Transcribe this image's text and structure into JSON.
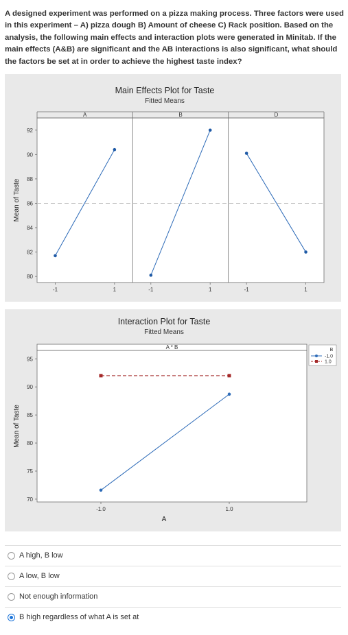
{
  "question": "A designed experiment was performed on a pizza making process. Three factors were used in this experiment – A) pizza dough B) Amount of cheese C) Rack position.  Based on the analysis, the following main effects and interaction plots were generated in Minitab. If the main effects (A&B) are significant and the AB interactions is also significant, what should the factors be set at in order to achieve the highest taste index?",
  "chart_data": [
    {
      "type": "line",
      "title": "Main Effects Plot for Taste",
      "subtitle": "Fitted Means",
      "ylabel": "Mean of Taste",
      "ylim": [
        79.5,
        93
      ],
      "yticks": [
        80,
        82,
        84,
        86,
        88,
        90,
        92
      ],
      "mean_line": 86,
      "panels": [
        {
          "factor": "A",
          "x": [
            "-1",
            "1"
          ],
          "values": [
            81.7,
            90.4
          ]
        },
        {
          "factor": "B",
          "x": [
            "-1",
            "1"
          ],
          "values": [
            80.1,
            92.0
          ]
        },
        {
          "factor": "D",
          "x": [
            "-1",
            "1"
          ],
          "values": [
            90.1,
            82.0
          ]
        }
      ],
      "colors": {
        "line": "#2d6bb8",
        "point": "#1f5aa6",
        "mean": "#bdbdbd"
      }
    },
    {
      "type": "line",
      "title": "Interaction Plot for Taste",
      "subtitle": "Fitted Means",
      "panel_label": "A * B",
      "xlabel": "A",
      "ylabel": "Mean of Taste",
      "x": [
        "-1.0",
        "1.0"
      ],
      "ylim": [
        69.5,
        96.5
      ],
      "yticks": [
        70,
        75,
        80,
        85,
        90,
        95
      ],
      "legend_title": "B",
      "legend_position": "top-right",
      "series": [
        {
          "name": "-1.0",
          "values": [
            71.6,
            88.7
          ],
          "color": "#2d6bb8",
          "dash": false
        },
        {
          "name": "1.0",
          "values": [
            92.0,
            92.0
          ],
          "color": "#a52a2a",
          "dash": true
        }
      ]
    }
  ],
  "options": [
    {
      "label": "A high, B low",
      "checked": false
    },
    {
      "label": "A low, B low",
      "checked": false
    },
    {
      "label": "Not enough information",
      "checked": false
    },
    {
      "label": "B high regardless of what A is set at",
      "checked": true
    }
  ]
}
